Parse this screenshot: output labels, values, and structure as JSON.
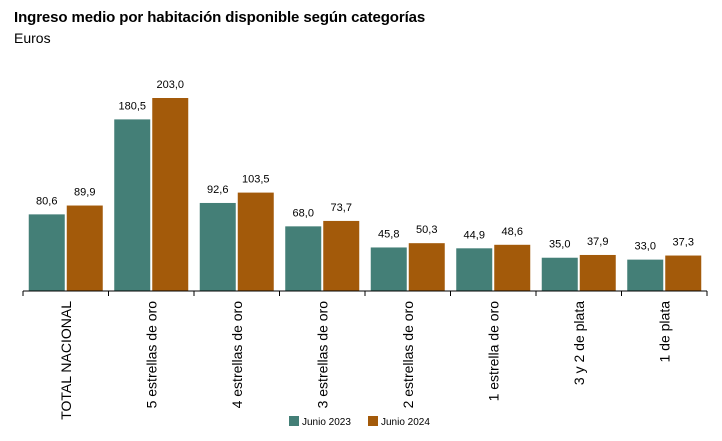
{
  "title": "Ingreso medio por habitación disponible según categorías",
  "subtitle": "Euros",
  "colors": {
    "series_2023": "#447f77",
    "series_2024": "#a35a0a"
  },
  "chart_data": {
    "type": "bar",
    "categories": [
      "TOTAL NACIONAL",
      "5 estrellas de oro",
      "4 estrellas de oro",
      "3 estrellas de oro",
      "2 estrellas de oro",
      "1 estrella de oro",
      "3 y 2 de plata",
      "1 de plata"
    ],
    "series": [
      {
        "name": "Junio 2023",
        "values": [
          80.6,
          180.5,
          92.6,
          68.0,
          45.8,
          44.9,
          35.0,
          33.0
        ],
        "labels": [
          "80,6",
          "180,5",
          "92,6",
          "68,0",
          "45,8",
          "44,9",
          "35,0",
          "33,0"
        ]
      },
      {
        "name": "Junio 2024",
        "values": [
          89.9,
          203.0,
          103.5,
          73.7,
          50.3,
          48.6,
          37.9,
          37.3
        ],
        "labels": [
          "89,9",
          "203,0",
          "103,5",
          "73,7",
          "50,3",
          "48,6",
          "37,9",
          "37,3"
        ]
      }
    ],
    "title": "Ingreso medio por habitación disponible según categorías",
    "ylabel": "Euros",
    "ylim": [
      0,
      203
    ],
    "grid": false,
    "legend": "bottom"
  }
}
